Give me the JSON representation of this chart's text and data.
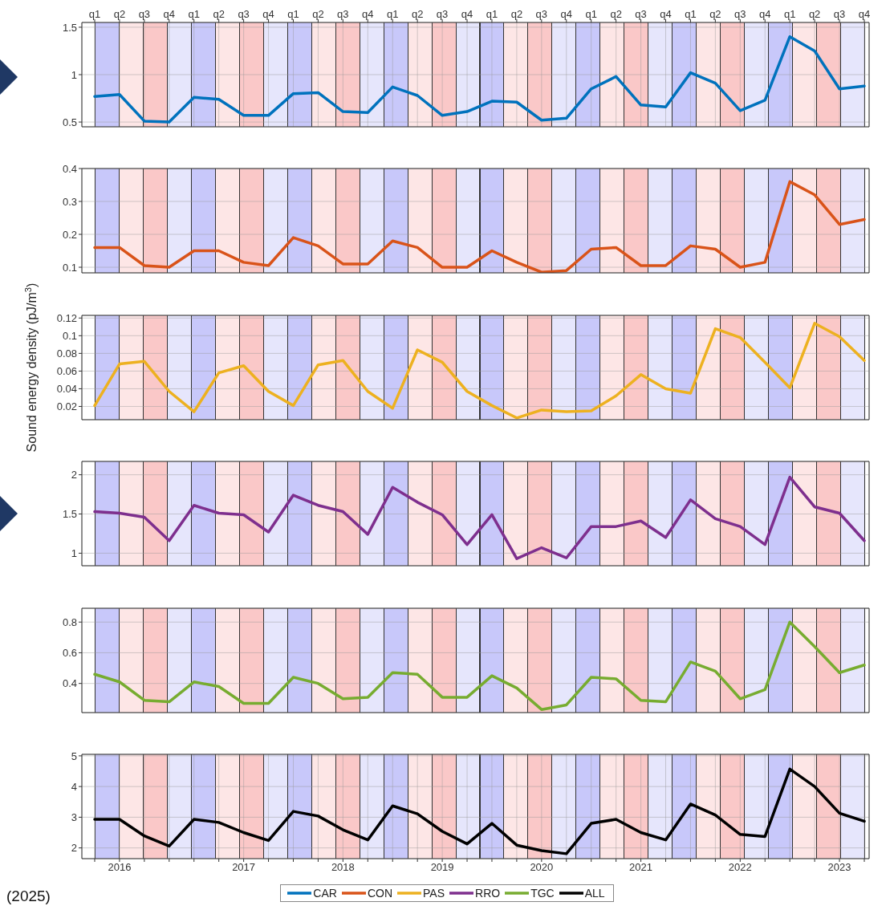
{
  "chart_data": [
    {
      "type": "line",
      "categories": [
        "q1",
        "q2",
        "q3",
        "q4",
        "q1",
        "q2",
        "q3",
        "q4",
        "q1",
        "q2",
        "q3",
        "q4",
        "q1",
        "q2",
        "q3",
        "q4",
        "q1",
        "q2",
        "q3",
        "q4",
        "q1",
        "q2",
        "q3",
        "q4",
        "q1",
        "q2",
        "q3",
        "q4",
        "q1",
        "q2",
        "q3",
        "q4"
      ],
      "ylim": [
        0.45,
        1.55
      ],
      "yticks": [
        0.5,
        1,
        1.5
      ],
      "grid": true,
      "series": [
        {
          "name": "CAR",
          "color": "#0072bd",
          "values": [
            0.77,
            0.79,
            0.51,
            0.5,
            0.76,
            0.74,
            0.57,
            0.57,
            0.8,
            0.81,
            0.61,
            0.6,
            0.87,
            0.78,
            0.57,
            0.61,
            0.72,
            0.71,
            0.52,
            0.54,
            0.85,
            0.98,
            0.68,
            0.66,
            1.02,
            0.91,
            0.62,
            0.73,
            1.4,
            1.25,
            0.85,
            0.88
          ]
        }
      ]
    },
    {
      "type": "line",
      "categories": [
        null,
        null,
        null,
        null,
        null,
        null,
        null,
        null,
        null,
        null,
        null,
        null,
        null,
        null,
        null,
        null,
        null,
        null,
        null,
        null,
        null,
        null,
        null,
        null,
        null,
        null,
        null,
        null,
        null,
        null,
        null,
        null
      ],
      "ylim": [
        0.083,
        0.4
      ],
      "yticks": [
        0.1,
        0.2,
        0.3,
        0.4
      ],
      "grid": true,
      "tick_labels": "y",
      "series": [
        {
          "name": "CON",
          "color": "#d95319",
          "values": [
            0.16,
            0.16,
            0.105,
            0.1,
            0.15,
            0.15,
            0.115,
            0.105,
            0.19,
            0.165,
            0.11,
            0.11,
            0.18,
            0.16,
            0.1,
            0.1,
            0.15,
            0.115,
            0.085,
            0.09,
            0.155,
            0.16,
            0.105,
            0.105,
            0.165,
            0.155,
            0.1,
            0.115,
            0.36,
            0.32,
            0.23,
            0.245
          ]
        }
      ]
    },
    {
      "type": "line",
      "categories": [
        null,
        null,
        null,
        null,
        null,
        null,
        null,
        null,
        null,
        null,
        null,
        null,
        null,
        null,
        null,
        null,
        null,
        null,
        null,
        null,
        null,
        null,
        null,
        null,
        null,
        null,
        null,
        null,
        null,
        null,
        null,
        null
      ],
      "ylim": [
        0.005,
        0.123
      ],
      "yticks": [
        0.02,
        0.04,
        0.06,
        0.08,
        0.1,
        0.12
      ],
      "grid": true,
      "tick_labels": "y",
      "ylabel": "Sound energy density (pJ/m$^{3}$)",
      "series": [
        {
          "name": "PAS",
          "color": "#edb120",
          "values": [
            0.021,
            0.068,
            0.071,
            0.037,
            0.014,
            0.058,
            0.066,
            0.037,
            0.021,
            0.067,
            0.072,
            0.037,
            0.018,
            0.084,
            0.07,
            0.037,
            0.021,
            0.007,
            0.016,
            0.014,
            0.015,
            0.032,
            0.056,
            0.04,
            0.035,
            0.108,
            0.098,
            0.07,
            0.041,
            0.114,
            0.099,
            0.072
          ]
        }
      ]
    },
    {
      "type": "line",
      "categories": [
        null,
        null,
        null,
        null,
        null,
        null,
        null,
        null,
        null,
        null,
        null,
        null,
        null,
        null,
        null,
        null,
        null,
        null,
        null,
        null,
        null,
        null,
        null,
        null,
        null,
        null,
        null,
        null,
        null,
        null,
        null,
        null
      ],
      "ylim": [
        0.84,
        2.17
      ],
      "yticks": [
        1,
        1.5,
        2
      ],
      "grid": true,
      "tick_labels": "y",
      "series": [
        {
          "name": "RRO",
          "color": "#7e2f8e",
          "values": [
            1.53,
            1.51,
            1.46,
            1.16,
            1.61,
            1.51,
            1.49,
            1.27,
            1.74,
            1.61,
            1.53,
            1.24,
            1.84,
            1.65,
            1.49,
            1.11,
            1.49,
            0.93,
            1.07,
            0.94,
            1.34,
            1.34,
            1.41,
            1.2,
            1.68,
            1.44,
            1.34,
            1.11,
            1.97,
            1.59,
            1.51,
            1.16
          ]
        }
      ]
    },
    {
      "type": "line",
      "categories": [
        null,
        null,
        null,
        null,
        null,
        null,
        null,
        null,
        null,
        null,
        null,
        null,
        null,
        null,
        null,
        null,
        null,
        null,
        null,
        null,
        null,
        null,
        null,
        null,
        null,
        null,
        null,
        null,
        null,
        null,
        null,
        null
      ],
      "ylim": [
        0.21,
        0.89
      ],
      "yticks": [
        0.4,
        0.6,
        0.8
      ],
      "grid": true,
      "tick_labels": "y",
      "series": [
        {
          "name": "TGC",
          "color": "#77ac30",
          "values": [
            0.46,
            0.41,
            0.29,
            0.28,
            0.41,
            0.38,
            0.27,
            0.27,
            0.44,
            0.4,
            0.3,
            0.31,
            0.47,
            0.46,
            0.31,
            0.31,
            0.45,
            0.37,
            0.23,
            0.26,
            0.44,
            0.43,
            0.29,
            0.28,
            0.54,
            0.48,
            0.3,
            0.36,
            0.8,
            0.64,
            0.47,
            0.52
          ]
        }
      ]
    },
    {
      "type": "line",
      "categories": [
        null,
        "2016",
        null,
        null,
        null,
        null,
        "2017",
        null,
        null,
        null,
        "2018",
        null,
        null,
        null,
        "2019",
        null,
        null,
        null,
        "2020",
        null,
        null,
        null,
        "2021",
        null,
        null,
        null,
        "2022",
        null,
        null,
        null,
        "2023",
        null
      ],
      "ylim": [
        1.65,
        5.05
      ],
      "yticks": [
        2,
        3,
        4,
        5
      ],
      "grid": true,
      "legend": "bottom",
      "annotations": [
        "(2025)"
      ],
      "series": [
        {
          "name": "ALL",
          "color": "#000000",
          "values": [
            2.93,
            2.93,
            2.39,
            2.06,
            2.93,
            2.83,
            2.5,
            2.24,
            3.19,
            3.04,
            2.59,
            2.26,
            3.37,
            3.11,
            2.54,
            2.13,
            2.8,
            2.09,
            1.91,
            1.81,
            2.8,
            2.93,
            2.5,
            2.26,
            3.43,
            3.07,
            2.44,
            2.37,
            4.57,
            4.0,
            3.13,
            2.87
          ]
        }
      ]
    }
  ]
}
